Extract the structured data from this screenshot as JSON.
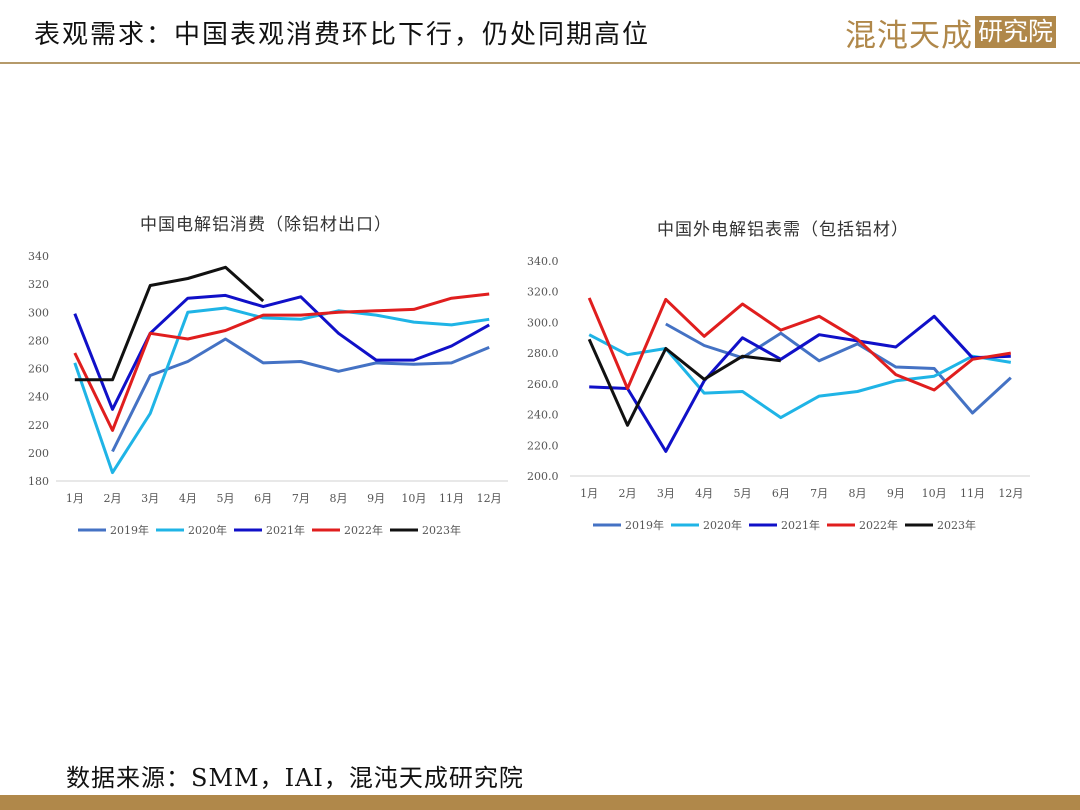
{
  "page_title": "表观需求：中国表观消费环比下行，仍处同期高位",
  "logo": {
    "main": "混沌天成",
    "boxed": "研究院",
    "color": "#b0884a"
  },
  "source": "数据来源：SMM，IAI，混沌天成研究院",
  "chart_data": [
    {
      "type": "line",
      "title": "中国电解铝消费（除铝材出口）",
      "categories": [
        "1月",
        "2月",
        "3月",
        "4月",
        "5月",
        "6月",
        "7月",
        "8月",
        "9月",
        "10月",
        "11月",
        "12月"
      ],
      "ylim": [
        180,
        340
      ],
      "yticks": [
        "180",
        "200",
        "220",
        "240",
        "260",
        "280",
        "300",
        "320",
        "340"
      ],
      "grid": false,
      "legend": "bottom",
      "series": [
        {
          "name": "2019年",
          "color": "#4472c4",
          "values": [
            null,
            201,
            255,
            265,
            281,
            264,
            265,
            258,
            264,
            263,
            264,
            275
          ]
        },
        {
          "name": "2020年",
          "color": "#1fb4e6",
          "values": [
            264,
            186,
            228,
            300,
            303,
            296,
            295,
            301,
            298,
            293,
            291,
            295
          ]
        },
        {
          "name": "2021年",
          "color": "#1010c8",
          "values": [
            299,
            231,
            285,
            310,
            312,
            304,
            311,
            285,
            266,
            266,
            276,
            291
          ]
        },
        {
          "name": "2022年",
          "color": "#e01e1e",
          "values": [
            271,
            216,
            285,
            281,
            287,
            298,
            298,
            300,
            301,
            302,
            310,
            313
          ]
        },
        {
          "name": "2023年",
          "color": "#111111",
          "values": [
            252,
            252,
            319,
            324,
            332,
            308,
            null,
            null,
            null,
            null,
            null,
            null
          ]
        }
      ]
    },
    {
      "type": "line",
      "title": "中国外电解铝表需（包括铝材）",
      "categories": [
        "1月",
        "2月",
        "3月",
        "4月",
        "5月",
        "6月",
        "7月",
        "8月",
        "9月",
        "10月",
        "11月",
        "12月"
      ],
      "ylim": [
        200,
        340
      ],
      "yticks": [
        "200.0",
        "220.0",
        "240.0",
        "260.0",
        "280.0",
        "300.0",
        "320.0",
        "340.0"
      ],
      "grid": false,
      "legend": "bottom",
      "series": [
        {
          "name": "2019年",
          "color": "#4472c4",
          "values": [
            null,
            null,
            299,
            285,
            277,
            293,
            275,
            286,
            271,
            270,
            241,
            264
          ]
        },
        {
          "name": "2020年",
          "color": "#1fb4e6",
          "values": [
            292,
            279,
            283,
            254,
            255,
            238,
            252,
            255,
            262,
            265,
            278,
            274
          ]
        },
        {
          "name": "2021年",
          "color": "#1010c8",
          "values": [
            258,
            257,
            216,
            262,
            290,
            276,
            292,
            288,
            284,
            304,
            277,
            278
          ]
        },
        {
          "name": "2022年",
          "color": "#e01e1e",
          "values": [
            316,
            257,
            315,
            291,
            312,
            295,
            304,
            289,
            266,
            256,
            276,
            280
          ]
        },
        {
          "name": "2023年",
          "color": "#111111",
          "values": [
            289,
            233,
            283,
            263,
            278,
            275,
            null,
            null,
            null,
            null,
            null,
            null
          ]
        }
      ]
    }
  ]
}
